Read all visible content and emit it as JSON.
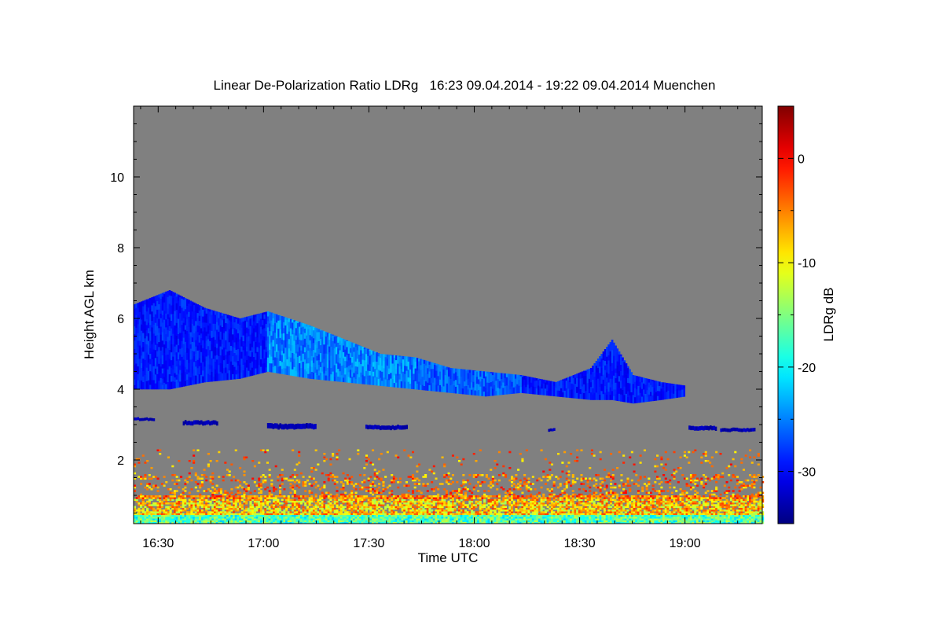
{
  "chart_data": {
    "type": "heatmap",
    "title": "Linear De-Polarization Ratio LDRg   16:23 09.04.2014 - 19:22 09.04.2014 Muenchen",
    "xlabel": "Time UTC",
    "ylabel": "Height AGL km",
    "colorbar_label": "LDRg dB",
    "xlim": [
      "16:23",
      "19:22"
    ],
    "ylim": [
      0.2,
      12.0
    ],
    "x_ticks": [
      "16:30",
      "17:00",
      "17:30",
      "18:00",
      "18:30",
      "19:00"
    ],
    "y_ticks": [
      "2",
      "4",
      "6",
      "8",
      "10"
    ],
    "colorbar_range": [
      -35,
      5
    ],
    "colorbar_ticks": [
      "0",
      "-10",
      "-20",
      "-30"
    ],
    "colormap": "jet",
    "background_color": "#808080",
    "features": [
      {
        "description": "cirrus layer",
        "time_start": "16:23",
        "time_end": "19:00",
        "height_km": [
          3.6,
          6.9
        ],
        "ldr_db": [
          -32,
          -20
        ]
      },
      {
        "description": "mid-level cloud patches",
        "time_start": "16:23",
        "time_end": "19:20",
        "height_km": [
          2.7,
          3.3
        ],
        "ldr_db": [
          -33,
          -30
        ]
      },
      {
        "description": "boundary layer aerosol",
        "time_start": "16:23",
        "time_end": "19:22",
        "height_km": [
          0.2,
          2.2
        ],
        "ldr_db": [
          -25,
          0
        ]
      }
    ]
  }
}
